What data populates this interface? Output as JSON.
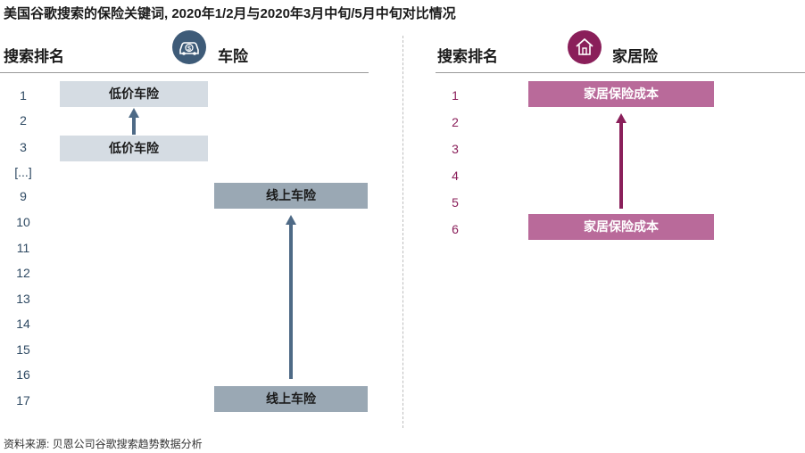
{
  "title": "美国谷歌搜索的保险关键词, 2020年1/2月与2020年3月中旬/5月中旬对比情况",
  "source": "资料来源: 贝恩公司谷歌搜索趋势数据分析",
  "colors": {
    "car_icon": "#3e5b78",
    "car_low_box": "#d5dce3",
    "car_online_box": "#9aa8b4",
    "car_arrow": "#4e6a86",
    "home_icon": "#8a1f5a",
    "home_box": "#b96a9a",
    "home_arrow": "#8a1f5a"
  },
  "left_panel": {
    "rank_header": "搜索排名",
    "category": "车险",
    "icon": "car-dollar-icon",
    "ranks": [
      "1",
      "2",
      "3",
      "[...]",
      "9",
      "10",
      "11",
      "12",
      "13",
      "14",
      "15",
      "16",
      "17"
    ]
  },
  "right_panel": {
    "rank_header": "搜索排名",
    "category": "家居险",
    "icon": "house-icon",
    "ranks": [
      "1",
      "2",
      "3",
      "4",
      "5",
      "6"
    ]
  },
  "chart_data": [
    {
      "type": "table",
      "panel": "车险",
      "keywords": [
        {
          "label": "低价车险",
          "rank_before": 3,
          "rank_after": 1
        },
        {
          "label": "线上车险",
          "rank_before": 17,
          "rank_after": 9
        }
      ]
    },
    {
      "type": "table",
      "panel": "家居险",
      "keywords": [
        {
          "label": "家居保险成本",
          "rank_before": 6,
          "rank_after": 1
        }
      ]
    }
  ]
}
